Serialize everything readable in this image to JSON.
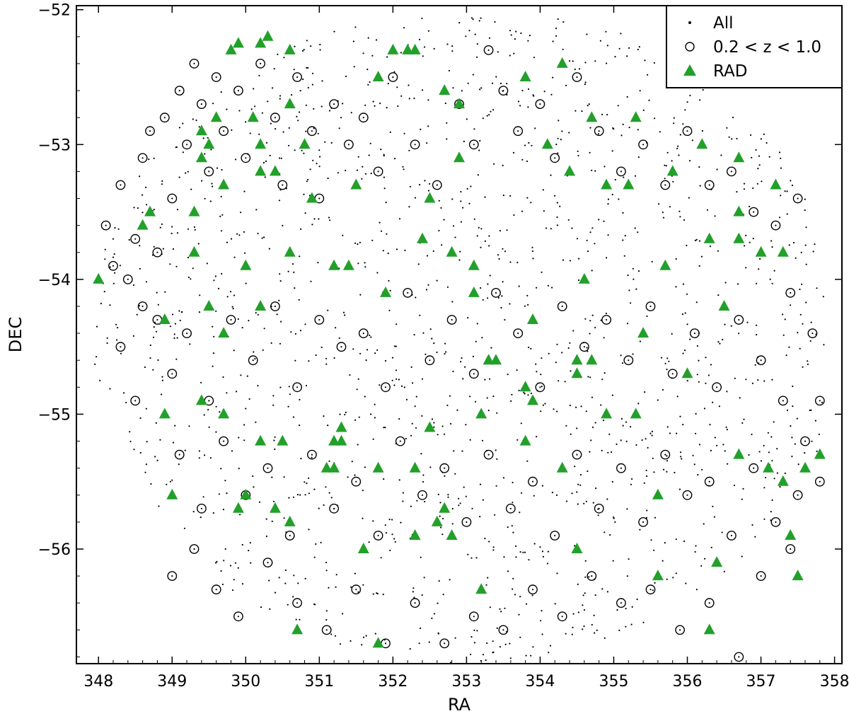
{
  "chart_data": {
    "type": "scatter",
    "title": "",
    "xlabel": "RA",
    "ylabel": "DEC",
    "xlim": [
      347.7,
      358.1
    ],
    "ylim": [
      -56.85,
      -51.97
    ],
    "x_ticks": [
      "348",
      "349",
      "350",
      "351",
      "352",
      "353",
      "354",
      "355",
      "356",
      "357",
      "358"
    ],
    "y_ticks": [
      "−52",
      "−53",
      "−54",
      "−55",
      "−56"
    ],
    "legend": {
      "position": "top-right",
      "entries": [
        "All",
        "0.2 < z < 1.0",
        "RAD"
      ]
    },
    "grid": false,
    "colors": {
      "all": "#000000",
      "z_range": "#000000",
      "rad": "#22a02a"
    },
    "series": [
      {
        "name": "0.2 < z < 1.0",
        "marker": "open-circle",
        "points": [
          [
            348.1,
            -53.6
          ],
          [
            348.2,
            -53.9
          ],
          [
            348.3,
            -53.3
          ],
          [
            348.4,
            -54.0
          ],
          [
            348.5,
            -53.7
          ],
          [
            348.6,
            -53.1
          ],
          [
            348.7,
            -52.9
          ],
          [
            348.8,
            -53.8
          ],
          [
            348.9,
            -52.8
          ],
          [
            349.0,
            -53.4
          ],
          [
            349.1,
            -52.6
          ],
          [
            349.2,
            -53.0
          ],
          [
            349.3,
            -52.4
          ],
          [
            349.4,
            -52.7
          ],
          [
            349.5,
            -53.2
          ],
          [
            349.6,
            -52.5
          ],
          [
            349.7,
            -52.9
          ],
          [
            349.9,
            -52.6
          ],
          [
            350.0,
            -53.1
          ],
          [
            350.2,
            -52.4
          ],
          [
            350.4,
            -52.8
          ],
          [
            350.5,
            -53.3
          ],
          [
            350.7,
            -52.5
          ],
          [
            350.9,
            -52.9
          ],
          [
            351.0,
            -53.4
          ],
          [
            351.2,
            -52.7
          ],
          [
            351.4,
            -53.0
          ],
          [
            351.6,
            -52.8
          ],
          [
            351.8,
            -53.2
          ],
          [
            352.0,
            -52.5
          ],
          [
            352.3,
            -53.0
          ],
          [
            352.6,
            -53.3
          ],
          [
            352.9,
            -52.7
          ],
          [
            353.1,
            -53.0
          ],
          [
            353.3,
            -52.3
          ],
          [
            353.5,
            -52.6
          ],
          [
            353.7,
            -52.9
          ],
          [
            354.0,
            -52.7
          ],
          [
            354.2,
            -53.1
          ],
          [
            354.5,
            -52.5
          ],
          [
            354.8,
            -52.9
          ],
          [
            355.1,
            -53.2
          ],
          [
            355.4,
            -53.0
          ],
          [
            355.7,
            -53.3
          ],
          [
            356.0,
            -52.9
          ],
          [
            356.3,
            -53.3
          ],
          [
            356.6,
            -53.2
          ],
          [
            356.9,
            -53.5
          ],
          [
            357.2,
            -53.6
          ],
          [
            357.5,
            -53.4
          ],
          [
            348.8,
            -54.3
          ],
          [
            349.0,
            -54.7
          ],
          [
            349.2,
            -54.4
          ],
          [
            349.5,
            -54.9
          ],
          [
            349.8,
            -54.3
          ],
          [
            350.1,
            -54.6
          ],
          [
            350.4,
            -54.2
          ],
          [
            350.7,
            -54.8
          ],
          [
            351.0,
            -54.3
          ],
          [
            351.3,
            -54.5
          ],
          [
            351.6,
            -54.4
          ],
          [
            351.9,
            -54.8
          ],
          [
            352.2,
            -54.1
          ],
          [
            352.5,
            -54.6
          ],
          [
            352.8,
            -54.3
          ],
          [
            353.1,
            -54.7
          ],
          [
            353.4,
            -54.1
          ],
          [
            353.7,
            -54.4
          ],
          [
            354.0,
            -54.8
          ],
          [
            354.3,
            -54.2
          ],
          [
            354.6,
            -54.5
          ],
          [
            354.9,
            -54.3
          ],
          [
            355.2,
            -54.6
          ],
          [
            355.5,
            -54.2
          ],
          [
            355.8,
            -54.7
          ],
          [
            356.1,
            -54.4
          ],
          [
            356.4,
            -54.8
          ],
          [
            356.7,
            -54.3
          ],
          [
            357.0,
            -54.6
          ],
          [
            357.3,
            -54.9
          ],
          [
            349.1,
            -55.3
          ],
          [
            349.4,
            -55.7
          ],
          [
            349.7,
            -55.2
          ],
          [
            350.0,
            -55.6
          ],
          [
            350.3,
            -55.4
          ],
          [
            350.6,
            -55.9
          ],
          [
            350.9,
            -55.3
          ],
          [
            351.2,
            -55.7
          ],
          [
            351.5,
            -55.5
          ],
          [
            351.8,
            -55.9
          ],
          [
            352.1,
            -55.2
          ],
          [
            352.4,
            -55.6
          ],
          [
            352.7,
            -55.4
          ],
          [
            353.0,
            -55.8
          ],
          [
            353.3,
            -55.3
          ],
          [
            353.6,
            -55.7
          ],
          [
            353.9,
            -55.5
          ],
          [
            354.2,
            -55.9
          ],
          [
            354.5,
            -55.3
          ],
          [
            354.8,
            -55.7
          ],
          [
            355.1,
            -55.4
          ],
          [
            355.4,
            -55.8
          ],
          [
            355.7,
            -55.3
          ],
          [
            356.0,
            -55.6
          ],
          [
            356.3,
            -55.5
          ],
          [
            356.6,
            -55.9
          ],
          [
            356.9,
            -55.4
          ],
          [
            357.2,
            -55.8
          ],
          [
            357.5,
            -55.6
          ],
          [
            357.8,
            -55.5
          ],
          [
            349.0,
            -56.2
          ],
          [
            349.3,
            -56.0
          ],
          [
            349.6,
            -56.3
          ],
          [
            349.9,
            -56.5
          ],
          [
            350.3,
            -56.1
          ],
          [
            350.7,
            -56.4
          ],
          [
            351.1,
            -56.6
          ],
          [
            351.5,
            -56.3
          ],
          [
            351.9,
            -56.7
          ],
          [
            352.3,
            -56.4
          ],
          [
            352.7,
            -56.7
          ],
          [
            353.1,
            -56.5
          ],
          [
            353.5,
            -56.6
          ],
          [
            353.9,
            -56.3
          ],
          [
            354.3,
            -56.5
          ],
          [
            354.7,
            -56.2
          ],
          [
            355.1,
            -56.4
          ],
          [
            355.5,
            -56.3
          ],
          [
            355.9,
            -56.6
          ],
          [
            356.3,
            -56.4
          ],
          [
            356.7,
            -56.8
          ],
          [
            357.0,
            -56.2
          ],
          [
            357.4,
            -56.0
          ],
          [
            348.3,
            -54.5
          ],
          [
            348.5,
            -54.9
          ],
          [
            348.6,
            -54.2
          ],
          [
            357.7,
            -54.4
          ],
          [
            357.8,
            -54.9
          ],
          [
            357.6,
            -55.2
          ],
          [
            357.4,
            -54.1
          ]
        ]
      },
      {
        "name": "RAD",
        "marker": "filled-triangle",
        "points": [
          [
            349.8,
            -52.3
          ],
          [
            349.9,
            -52.25
          ],
          [
            350.2,
            -52.25
          ],
          [
            350.3,
            -52.2
          ],
          [
            350.6,
            -52.3
          ],
          [
            352.0,
            -52.3
          ],
          [
            352.2,
            -52.3
          ],
          [
            352.3,
            -52.3
          ],
          [
            354.3,
            -52.4
          ],
          [
            351.8,
            -52.5
          ],
          [
            352.7,
            -52.6
          ],
          [
            353.8,
            -52.5
          ],
          [
            352.9,
            -52.7
          ],
          [
            350.1,
            -52.8
          ],
          [
            350.6,
            -52.7
          ],
          [
            349.6,
            -52.8
          ],
          [
            355.3,
            -52.8
          ],
          [
            354.7,
            -52.8
          ],
          [
            349.4,
            -52.9
          ],
          [
            349.5,
            -53.0
          ],
          [
            349.4,
            -53.1
          ],
          [
            350.2,
            -53.0
          ],
          [
            350.8,
            -53.0
          ],
          [
            354.1,
            -53.0
          ],
          [
            356.2,
            -53.0
          ],
          [
            350.2,
            -53.2
          ],
          [
            350.4,
            -53.2
          ],
          [
            352.9,
            -53.1
          ],
          [
            354.4,
            -53.2
          ],
          [
            355.8,
            -53.2
          ],
          [
            356.7,
            -53.1
          ],
          [
            349.7,
            -53.3
          ],
          [
            351.5,
            -53.3
          ],
          [
            354.9,
            -53.3
          ],
          [
            355.2,
            -53.3
          ],
          [
            357.2,
            -53.3
          ],
          [
            348.7,
            -53.5
          ],
          [
            349.3,
            -53.5
          ],
          [
            350.9,
            -53.4
          ],
          [
            352.5,
            -53.4
          ],
          [
            356.7,
            -53.5
          ],
          [
            348.6,
            -53.6
          ],
          [
            352.4,
            -53.7
          ],
          [
            352.8,
            -53.8
          ],
          [
            356.3,
            -53.7
          ],
          [
            356.7,
            -53.7
          ],
          [
            357.0,
            -53.8
          ],
          [
            357.3,
            -53.8
          ],
          [
            349.3,
            -53.8
          ],
          [
            350.6,
            -53.8
          ],
          [
            350.0,
            -53.9
          ],
          [
            351.2,
            -53.9
          ],
          [
            351.4,
            -53.9
          ],
          [
            353.1,
            -53.9
          ],
          [
            355.7,
            -53.9
          ],
          [
            348.0,
            -54.0
          ],
          [
            354.6,
            -54.0
          ],
          [
            351.9,
            -54.1
          ],
          [
            353.1,
            -54.1
          ],
          [
            350.2,
            -54.2
          ],
          [
            349.5,
            -54.2
          ],
          [
            353.9,
            -54.3
          ],
          [
            356.5,
            -54.2
          ],
          [
            348.9,
            -54.3
          ],
          [
            349.7,
            -54.4
          ],
          [
            355.4,
            -54.4
          ],
          [
            353.3,
            -54.6
          ],
          [
            353.4,
            -54.6
          ],
          [
            354.5,
            -54.6
          ],
          [
            354.7,
            -54.6
          ],
          [
            356.0,
            -54.7
          ],
          [
            354.5,
            -54.7
          ],
          [
            353.8,
            -54.8
          ],
          [
            353.9,
            -54.9
          ],
          [
            349.4,
            -54.9
          ],
          [
            349.7,
            -55.0
          ],
          [
            348.9,
            -55.0
          ],
          [
            353.2,
            -55.0
          ],
          [
            354.9,
            -55.0
          ],
          [
            355.3,
            -55.0
          ],
          [
            351.3,
            -55.1
          ],
          [
            352.5,
            -55.1
          ],
          [
            350.2,
            -55.2
          ],
          [
            350.5,
            -55.2
          ],
          [
            351.2,
            -55.2
          ],
          [
            351.3,
            -55.2
          ],
          [
            353.8,
            -55.2
          ],
          [
            356.7,
            -55.3
          ],
          [
            357.8,
            -55.3
          ],
          [
            357.6,
            -55.4
          ],
          [
            351.1,
            -55.4
          ],
          [
            351.2,
            -55.4
          ],
          [
            351.8,
            -55.4
          ],
          [
            352.3,
            -55.4
          ],
          [
            354.3,
            -55.4
          ],
          [
            357.1,
            -55.4
          ],
          [
            349.0,
            -55.6
          ],
          [
            355.6,
            -55.6
          ],
          [
            357.3,
            -55.5
          ],
          [
            349.9,
            -55.7
          ],
          [
            350.4,
            -55.7
          ],
          [
            350.0,
            -55.6
          ],
          [
            352.7,
            -55.7
          ],
          [
            352.6,
            -55.8
          ],
          [
            350.6,
            -55.8
          ],
          [
            352.8,
            -55.9
          ],
          [
            352.3,
            -55.9
          ],
          [
            357.4,
            -55.9
          ],
          [
            354.5,
            -56.0
          ],
          [
            351.6,
            -56.0
          ],
          [
            356.4,
            -56.1
          ],
          [
            355.6,
            -56.2
          ],
          [
            357.5,
            -56.2
          ],
          [
            353.2,
            -56.3
          ],
          [
            350.7,
            -56.6
          ],
          [
            356.3,
            -56.6
          ],
          [
            351.8,
            -56.7
          ]
        ]
      }
    ]
  }
}
